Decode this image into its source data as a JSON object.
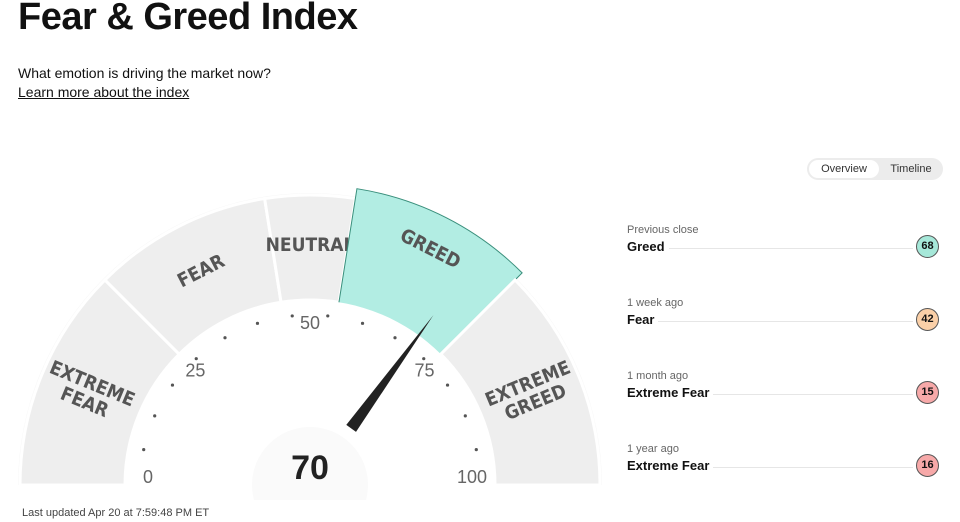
{
  "header": {
    "title": "Fear & Greed Index",
    "subtitle": "What emotion is driving the market now?",
    "learn_more": "Learn more about the index"
  },
  "gauge": {
    "value": 70,
    "value_label": "70",
    "current_rating": "Greed",
    "segments": [
      {
        "label": [
          "EXTREME",
          "FEAR"
        ],
        "range": [
          0,
          25
        ]
      },
      {
        "label": [
          "FEAR"
        ],
        "range": [
          25,
          45
        ]
      },
      {
        "label": [
          "NEUTRAL"
        ],
        "range": [
          45,
          55
        ]
      },
      {
        "label": [
          "GREED"
        ],
        "range": [
          55,
          75
        ]
      },
      {
        "label": [
          "EXTREME",
          "GREED"
        ],
        "range": [
          75,
          100
        ]
      }
    ],
    "active_segment": 3,
    "tick_labels": [
      "0",
      "25",
      "50",
      "75",
      "100"
    ],
    "colors": {
      "segment": "#eeeeee",
      "active": "#b2ede3",
      "active_border": "#3a8f7c",
      "needle": "#222222"
    }
  },
  "last_updated": "Last updated Apr 20 at 7:59:48 PM ET",
  "toggle": {
    "options": [
      "Overview",
      "Timeline"
    ],
    "selected": "Overview"
  },
  "history": [
    {
      "label": "Previous close",
      "rating": "Greed",
      "value": "68",
      "color": "#a6e8d9"
    },
    {
      "label": "1 week ago",
      "rating": "Fear",
      "value": "42",
      "color": "#fbd0a8"
    },
    {
      "label": "1 month ago",
      "rating": "Extreme Fear",
      "value": "15",
      "color": "#f7a9a9"
    },
    {
      "label": "1 year ago",
      "rating": "Extreme Fear",
      "value": "16",
      "color": "#f7a9a9"
    }
  ]
}
